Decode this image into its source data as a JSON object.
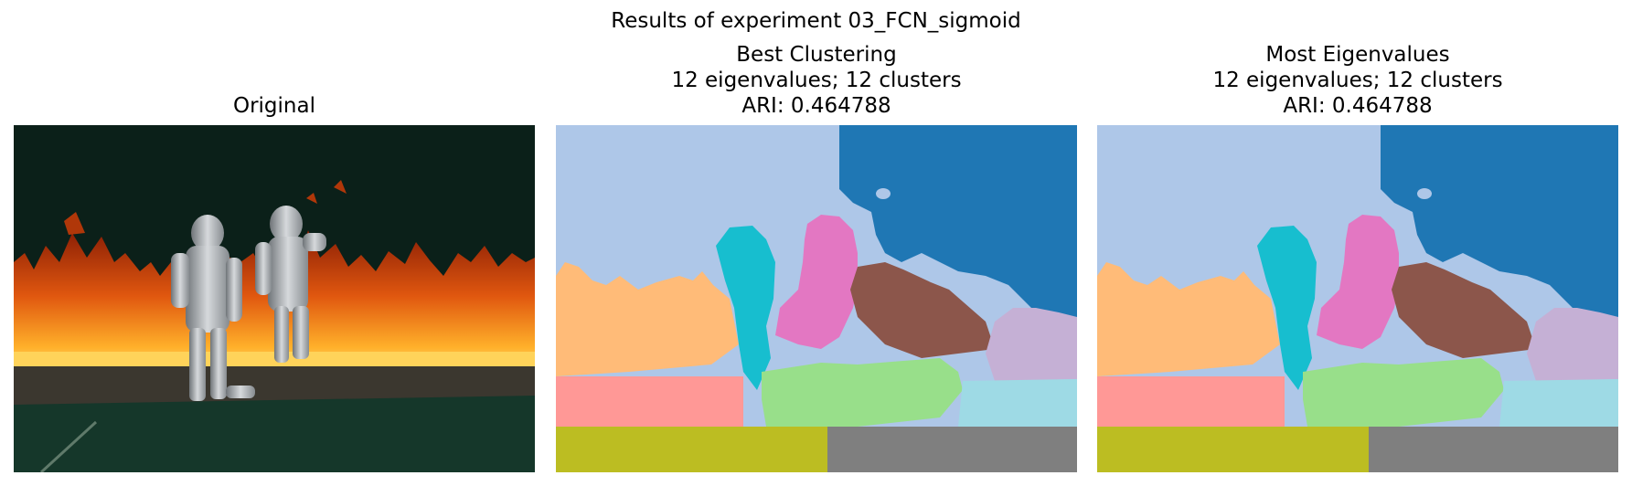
{
  "figure": {
    "suptitle": "Results of experiment 03_FCN_sigmoid"
  },
  "panels": [
    {
      "title_lines": [
        "Original"
      ],
      "image": "photo of two people in silver fire-proximity suits walking in front of a line of flames"
    },
    {
      "title_lines": [
        "Best Clustering",
        "12 eigenvalues; 12 clusters",
        "ARI: 0.464788"
      ],
      "image": "segmentation map with 12 colored clusters"
    },
    {
      "title_lines": [
        "Most Eigenvalues",
        "12 eigenvalues; 12 clusters",
        "ARI: 0.464788"
      ],
      "image": "segmentation map with 12 colored clusters"
    }
  ],
  "cluster_colors": {
    "sky_light": "#aec7e8",
    "sky_dark": "#1f77b4",
    "flames_left": "#ffbb78",
    "person_left": "#17becf",
    "person_right": "#e377c2",
    "flames_mid": "#8c564b",
    "flames_right": "#c5b0d5",
    "ground_left": "#ff9896",
    "ground_mid": "#98df8a",
    "ground_right": "#9edae5",
    "floor_left": "#bcbd22",
    "floor_right": "#7f7f7f"
  }
}
